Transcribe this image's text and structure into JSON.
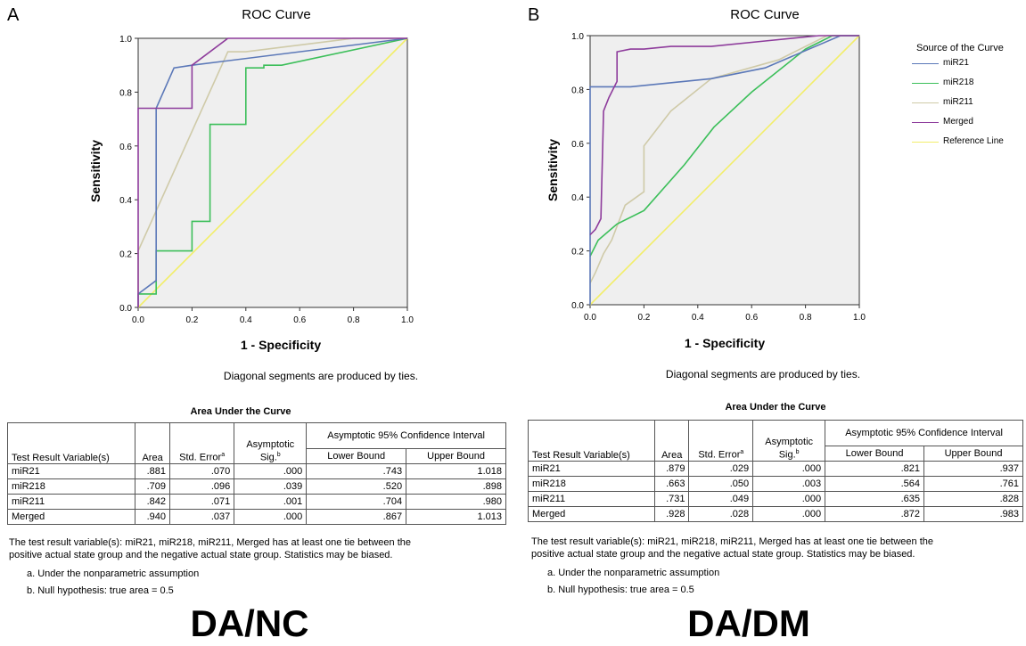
{
  "panels": [
    {
      "letter": "A",
      "title": "ROC Curve",
      "xlabel": "1 - Specificity",
      "ylabel": "Sensitivity",
      "ties_note": "Diagonal segments are produced by ties.",
      "table": {
        "title": "Area Under the Curve",
        "headers": {
          "variable": "Test Result Variable(s)",
          "area": "Area",
          "std_error": "Std. Error",
          "std_error_sup": "a",
          "sig": "Asymptotic Sig.",
          "sig_sup": "b",
          "ci": "Asymptotic 95% Confidence Interval",
          "lower": "Lower Bound",
          "upper": "Upper Bound"
        },
        "rows": [
          {
            "name": "miR21",
            "area": ".881",
            "se": ".070",
            "sig": ".000",
            "lower": ".743",
            "upper": "1.018"
          },
          {
            "name": "miR218",
            "area": ".709",
            "se": ".096",
            "sig": ".039",
            "lower": ".520",
            "upper": ".898"
          },
          {
            "name": "miR211",
            "area": ".842",
            "se": ".071",
            "sig": ".001",
            "lower": ".704",
            "upper": ".980"
          },
          {
            "name": "Merged",
            "area": ".940",
            "se": ".037",
            "sig": ".000",
            "lower": ".867",
            "upper": "1.013"
          }
        ],
        "note1": "The test result variable(s): miR21, miR218, miR211, Merged has at least one tie between the",
        "note2": "positive actual state group and the negative actual state group. Statistics may be biased.",
        "footnote_a": "a. Under the nonparametric assumption",
        "footnote_b": "b. Null hypothesis: true area = 0.5"
      },
      "big_label": "DA/NC"
    },
    {
      "letter": "B",
      "title": "ROC Curve",
      "xlabel": "1 - Specificity",
      "ylabel": "Sensitivity",
      "ties_note": "Diagonal segments are produced by ties.",
      "legend": {
        "title": "Source of the Curve",
        "items": [
          "miR21",
          "miR218",
          "miR211",
          "Merged",
          "Reference Line"
        ]
      },
      "table": {
        "title": "Area Under the Curve",
        "headers": {
          "variable": "Test Result Variable(s)",
          "area": "Area",
          "std_error": "Std. Error",
          "std_error_sup": "a",
          "sig": "Asymptotic Sig.",
          "sig_sup": "b",
          "ci": "Asymptotic 95% Confidence Interval",
          "lower": "Lower Bound",
          "upper": "Upper Bound"
        },
        "rows": [
          {
            "name": "miR21",
            "area": ".879",
            "se": ".029",
            "sig": ".000",
            "lower": ".821",
            "upper": ".937"
          },
          {
            "name": "miR218",
            "area": ".663",
            "se": ".050",
            "sig": ".003",
            "lower": ".564",
            "upper": ".761"
          },
          {
            "name": "miR211",
            "area": ".731",
            "se": ".049",
            "sig": ".000",
            "lower": ".635",
            "upper": ".828"
          },
          {
            "name": "Merged",
            "area": ".928",
            "se": ".028",
            "sig": ".000",
            "lower": ".872",
            "upper": ".983"
          }
        ],
        "note1": "The test result variable(s): miR21, miR218, miR211, Merged has at least one tie between the",
        "note2": "positive actual state group and the negative actual state group. Statistics may be biased.",
        "footnote_a": "a. Under the nonparametric assumption",
        "footnote_b": "b. Null hypothesis: true area = 0.5"
      },
      "big_label": "DA/DM"
    }
  ],
  "colors": {
    "miR21": "#5b78b8",
    "miR218": "#3cbf5a",
    "miR211": "#cfcaa8",
    "Merged": "#8e3c9c",
    "Reference Line": "#f2ee6a",
    "plot_bg": "#efefef"
  },
  "chart_data": [
    {
      "type": "line",
      "title": "ROC Curve",
      "xlabel": "1 - Specificity",
      "ylabel": "Sensitivity",
      "xlim": [
        0,
        1
      ],
      "ylim": [
        0,
        1
      ],
      "x_ticks": [
        "0.0",
        "0.2",
        "0.4",
        "0.6",
        "0.8",
        "1.0"
      ],
      "y_ticks": [
        "0.0",
        "0.2",
        "0.4",
        "0.6",
        "0.8",
        "1.0"
      ],
      "grid": false,
      "series": [
        {
          "name": "miR21",
          "x": [
            0,
            0,
            0.067,
            0.067,
            0.133,
            0.2,
            1
          ],
          "y": [
            0,
            0.05,
            0.1,
            0.74,
            0.89,
            0.9,
            1
          ]
        },
        {
          "name": "miR218",
          "x": [
            0,
            0.067,
            0.067,
            0.2,
            0.2,
            0.267,
            0.267,
            0.4,
            0.4,
            0.467,
            0.467,
            0.533,
            1
          ],
          "y": [
            0.05,
            0.05,
            0.21,
            0.21,
            0.32,
            0.32,
            0.68,
            0.68,
            0.89,
            0.89,
            0.9,
            0.9,
            1
          ]
        },
        {
          "name": "miR211",
          "x": [
            0,
            0,
            0.333,
            0.4,
            0.8,
            1
          ],
          "y": [
            0,
            0.21,
            0.95,
            0.95,
            1,
            1
          ]
        },
        {
          "name": "Merged",
          "x": [
            0,
            0,
            0.2,
            0.2,
            0.333,
            1
          ],
          "y": [
            0,
            0.74,
            0.74,
            0.9,
            1,
            1
          ]
        },
        {
          "name": "Reference Line",
          "x": [
            0,
            1
          ],
          "y": [
            0,
            1
          ]
        }
      ]
    },
    {
      "type": "line",
      "title": "ROC Curve",
      "xlabel": "1 - Specificity",
      "ylabel": "Sensitivity",
      "xlim": [
        0,
        1
      ],
      "ylim": [
        0,
        1
      ],
      "x_ticks": [
        "0.0",
        "0.2",
        "0.4",
        "0.6",
        "0.8",
        "1.0"
      ],
      "y_ticks": [
        "0.0",
        "0.2",
        "0.4",
        "0.6",
        "0.8",
        "1.0"
      ],
      "grid": false,
      "legend": "right",
      "series": [
        {
          "name": "miR21",
          "x": [
            0,
            0,
            0.15,
            0.45,
            0.65,
            0.93,
            1
          ],
          "y": [
            0,
            0.81,
            0.81,
            0.84,
            0.88,
            1,
            1
          ]
        },
        {
          "name": "miR218",
          "x": [
            0,
            0.03,
            0.1,
            0.2,
            0.35,
            0.46,
            0.6,
            0.8,
            0.9,
            1
          ],
          "y": [
            0.18,
            0.24,
            0.3,
            0.35,
            0.52,
            0.66,
            0.79,
            0.95,
            1,
            1
          ]
        },
        {
          "name": "miR211",
          "x": [
            0,
            0.02,
            0.05,
            0.08,
            0.13,
            0.2,
            0.2,
            0.3,
            0.45,
            0.7,
            0.88,
            1
          ],
          "y": [
            0.08,
            0.12,
            0.19,
            0.24,
            0.37,
            0.42,
            0.59,
            0.72,
            0.84,
            0.91,
            1,
            1
          ]
        },
        {
          "name": "Merged",
          "x": [
            0,
            0.02,
            0.04,
            0.05,
            0.07,
            0.1,
            0.1,
            0.15,
            0.2,
            0.3,
            0.45,
            0.65,
            0.85,
            1
          ],
          "y": [
            0.26,
            0.28,
            0.32,
            0.72,
            0.77,
            0.83,
            0.94,
            0.95,
            0.95,
            0.96,
            0.96,
            0.98,
            1,
            1
          ]
        },
        {
          "name": "Reference Line",
          "x": [
            0,
            1
          ],
          "y": [
            0,
            1
          ]
        }
      ]
    }
  ]
}
